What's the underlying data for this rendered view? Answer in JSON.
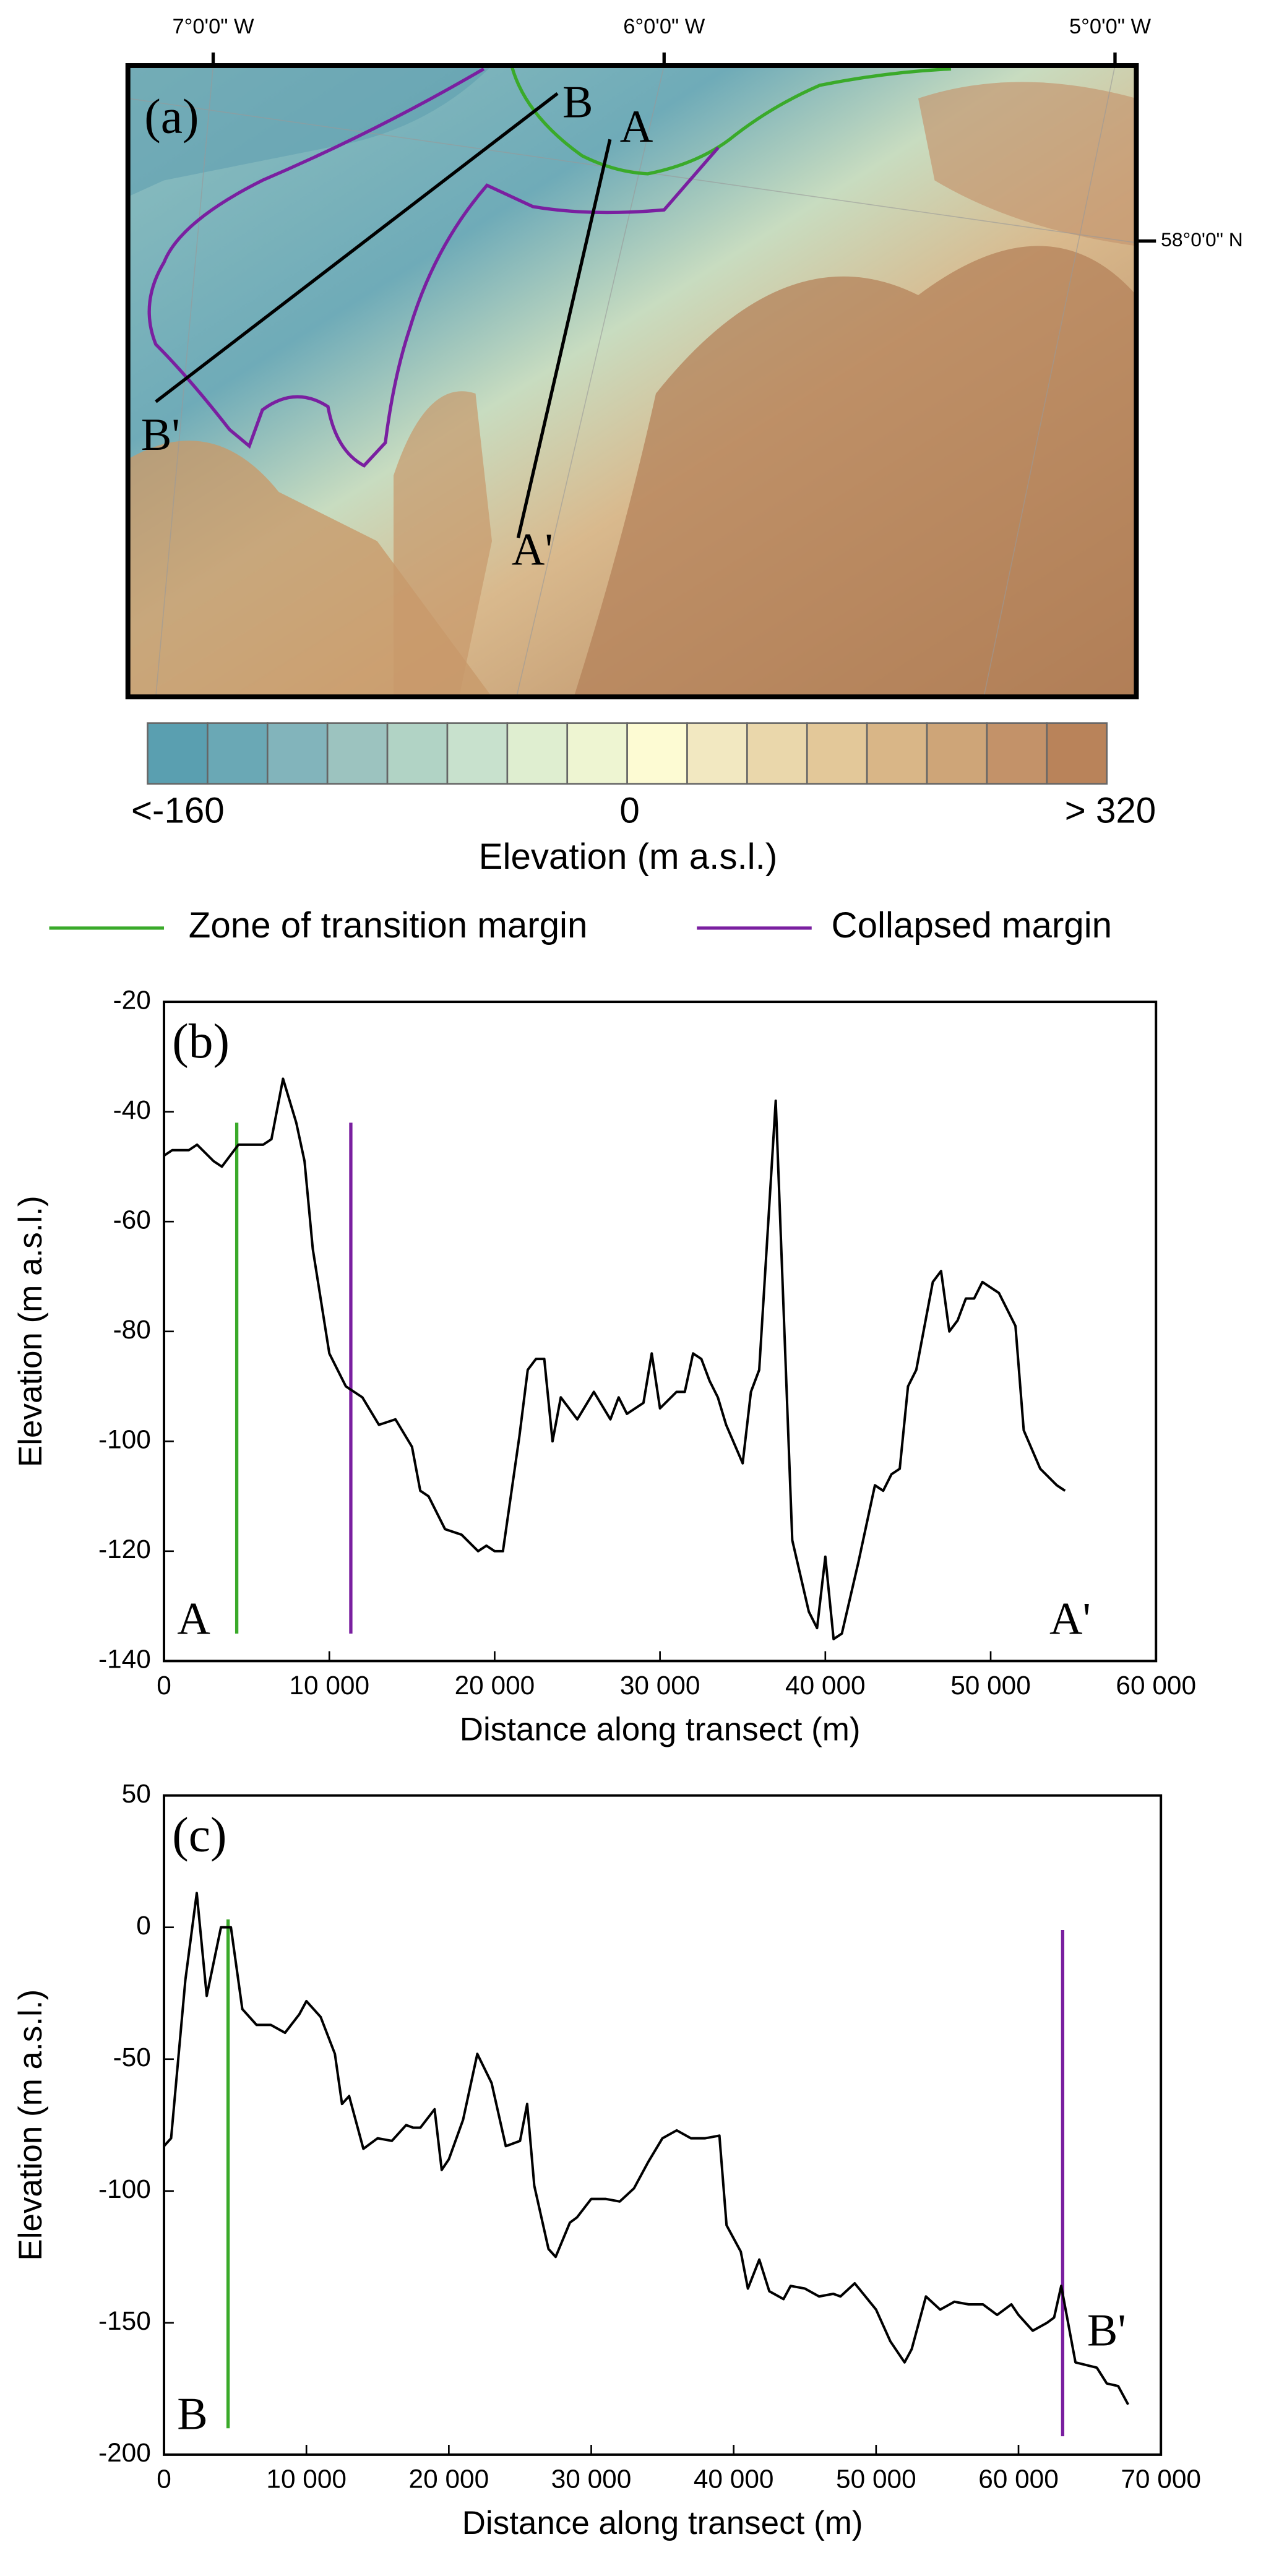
{
  "map": {
    "panel_label": "(a)",
    "longitude_labels": [
      "7°0'0\"  W",
      "6°0'0\"  W",
      "5°0'0\"  W"
    ],
    "latitude_label": "58°0'0\" N",
    "transects": [
      "A",
      "A'",
      "B",
      "B'"
    ]
  },
  "colorbar": {
    "colors": [
      "#5a9fb0",
      "#6aa8b5",
      "#82b4bb",
      "#9cc3bf",
      "#b1d3c5",
      "#c8e1cd",
      "#dfeed0",
      "#eef5d2",
      "#fdfbd3",
      "#f2e8c1",
      "#ead7ab",
      "#e3c899",
      "#d9b687",
      "#cea578",
      "#c39269",
      "#b9835a"
    ],
    "labels": [
      "<-160",
      "0",
      "> 320"
    ],
    "title": "Elevation (m a.s.l.)"
  },
  "legend": [
    {
      "name": "Zone of  transition margin",
      "color": "#3aaa2a"
    },
    {
      "name": "Collapsed margin",
      "color": "#7a1fa0"
    }
  ],
  "chart_data": [
    {
      "type": "line",
      "panel_label": "(b)",
      "annotations": [
        "A",
        "A'"
      ],
      "x_label": "Distance along transect (m)",
      "y_label": "Elevation (m a.s.l.)",
      "color": "#000000",
      "x": [
        0,
        500,
        1500,
        2000,
        3000,
        3500,
        4500,
        5000,
        6000,
        6500,
        7200,
        8000,
        8500,
        9000,
        10000,
        11000,
        12000,
        13000,
        14000,
        15000,
        15500,
        16000,
        17000,
        18000,
        19000,
        19500,
        20000,
        20500,
        21500,
        22000,
        22500,
        23000,
        23500,
        24000,
        25000,
        26000,
        27000,
        27500,
        28000,
        29000,
        29500,
        30000,
        31000,
        31500,
        32000,
        32500,
        33000,
        33500,
        34000,
        35000,
        35500,
        36000,
        37000,
        38000,
        39000,
        39500,
        40000,
        40500,
        41000,
        42000,
        43000,
        43500,
        44000,
        44500,
        45000,
        45500,
        46500,
        47000,
        47500,
        48000,
        48500,
        49000,
        49500,
        50500,
        51500,
        52000,
        53000,
        54000,
        54500
      ],
      "values": [
        -48,
        -47,
        -47,
        -46,
        -49,
        -50,
        -46,
        -46,
        -46,
        -45,
        -34,
        -42,
        -49,
        -65,
        -84,
        -90,
        -92,
        -97,
        -96,
        -101,
        -109,
        -110,
        -116,
        -117,
        -120,
        -119,
        -120,
        -120,
        -99,
        -87,
        -85,
        -85,
        -100,
        -92,
        -96,
        -91,
        -96,
        -92,
        -95,
        -93,
        -84,
        -94,
        -91,
        -91,
        -84,
        -85,
        -89,
        -92,
        -97,
        -104,
        -91,
        -87,
        -38,
        -118,
        -131,
        -134,
        -121,
        -136,
        -135,
        -122,
        -108,
        -109,
        -106,
        -105,
        -90,
        -87,
        -71,
        -69,
        -80,
        -78,
        -74,
        -74,
        -71,
        -73,
        -79,
        -98,
        -105,
        -108,
        -109
      ],
      "margins": [
        {
          "x": 4400,
          "y": [
            -135,
            -42
          ],
          "color": "#3aaa2a"
        },
        {
          "x": 11300,
          "y": [
            -135,
            -42
          ],
          "color": "#7a1fa0"
        }
      ],
      "xlim": [
        0,
        60000
      ],
      "xticks": [
        0,
        {
          "value": 10000,
          "label": "10 000"
        },
        {
          "value": 20000,
          "label": "20 000"
        },
        {
          "value": 30000,
          "label": "30 000"
        },
        {
          "value": 40000,
          "label": "40 000"
        },
        {
          "value": 50000,
          "label": "50 000"
        },
        {
          "value": 60000,
          "label": "60 000"
        }
      ],
      "ylim": [
        -140,
        -20
      ],
      "yticks": [
        -140,
        -120,
        -100,
        -80,
        -60,
        -40,
        -20
      ]
    },
    {
      "type": "line",
      "panel_label": "(c)",
      "annotations": [
        "B",
        "B'"
      ],
      "x_label": "Distance along transect (m)",
      "y_label": "Elevation (m a.s.l.)",
      "color": "#000000",
      "x": [
        0,
        500,
        1500,
        2300,
        3000,
        4000,
        4700,
        5500,
        6500,
        7500,
        8500,
        9500,
        10000,
        11000,
        12000,
        12500,
        13000,
        14000,
        15000,
        16000,
        17000,
        17500,
        18000,
        19000,
        19500,
        20000,
        21000,
        22000,
        23000,
        24000,
        25000,
        25500,
        26000,
        27000,
        27500,
        28500,
        29000,
        30000,
        31000,
        32000,
        33000,
        34000,
        35000,
        36000,
        37000,
        38000,
        39000,
        39500,
        40500,
        41000,
        41800,
        42500,
        43500,
        44000,
        45000,
        46000,
        47000,
        47500,
        48500,
        50000,
        51000,
        52000,
        52500,
        53500,
        54500,
        55500,
        56500,
        57500,
        58500,
        59500,
        60000,
        61000,
        62000,
        62500,
        63000,
        64000,
        65500,
        66200,
        67000,
        67700
      ],
      "values": [
        -83,
        -80,
        -20,
        13,
        -26,
        0,
        0,
        -31,
        -37,
        -37,
        -40,
        -33,
        -28,
        -34,
        -48,
        -67,
        -64,
        -84,
        -80,
        -81,
        -75,
        -76,
        -76,
        -69,
        -92,
        -88,
        -73,
        -48,
        -59,
        -83,
        -81,
        -67,
        -98,
        -122,
        -125,
        -112,
        -110,
        -103,
        -103,
        -104,
        -99,
        -89,
        -80,
        -77,
        -80,
        -80,
        -79,
        -113,
        -123,
        -137,
        -126,
        -138,
        -141,
        -136,
        -137,
        -140,
        -139,
        -140,
        -135,
        -145,
        -157,
        -165,
        -160,
        -140,
        -145,
        -142,
        -143,
        -143,
        -147,
        -143,
        -147,
        -153,
        -150,
        -148,
        -136,
        -165,
        -167,
        -173,
        -174,
        -181
      ],
      "margins": [
        {
          "x": 4500,
          "y": [
            -190,
            3
          ],
          "color": "#3aaa2a"
        },
        {
          "x": 63100,
          "y": [
            -193,
            -1
          ],
          "color": "#7a1fa0"
        }
      ],
      "xlim": [
        0,
        70000
      ],
      "xticks": [
        0,
        {
          "value": 10000,
          "label": "10 000"
        },
        {
          "value": 20000,
          "label": "20 000"
        },
        {
          "value": 30000,
          "label": "30 000"
        },
        {
          "value": 40000,
          "label": "40 000"
        },
        {
          "value": 50000,
          "label": "50 000"
        },
        {
          "value": 60000,
          "label": "60 000"
        },
        {
          "value": 70000,
          "label": "70 000"
        }
      ],
      "ylim": [
        -200,
        50
      ],
      "yticks": [
        -200,
        -150,
        -100,
        -50,
        0,
        50
      ]
    }
  ]
}
